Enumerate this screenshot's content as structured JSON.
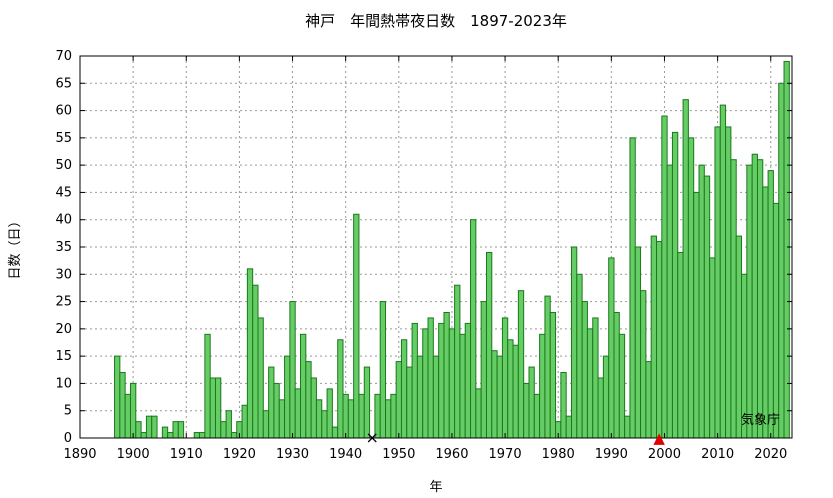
{
  "chart_data": {
    "type": "bar",
    "title": "神戸　年間熱帯夜日数　1897-2023年",
    "xlabel": "年",
    "ylabel": "日数（日）",
    "source": "気象庁",
    "xlim": [
      1890,
      2024
    ],
    "ylim": [
      0,
      70
    ],
    "xticks": [
      1890,
      1900,
      1910,
      1920,
      1930,
      1940,
      1950,
      1960,
      1970,
      1980,
      1990,
      2000,
      2010,
      2020
    ],
    "yticks": [
      0,
      5,
      10,
      15,
      20,
      25,
      30,
      35,
      40,
      45,
      50,
      55,
      60,
      65,
      70
    ],
    "grid": true,
    "start_year": 1897,
    "values": [
      15,
      12,
      8,
      10,
      3,
      1,
      4,
      4,
      0,
      2,
      1,
      3,
      3,
      0,
      0,
      1,
      1,
      19,
      11,
      11,
      3,
      5,
      1,
      3,
      6,
      31,
      28,
      22,
      5,
      13,
      10,
      7,
      15,
      25,
      9,
      19,
      14,
      11,
      7,
      5,
      9,
      2,
      18,
      8,
      7,
      41,
      8,
      13,
      0,
      8,
      25,
      7,
      8,
      14,
      18,
      13,
      21,
      15,
      20,
      22,
      15,
      21,
      23,
      20,
      28,
      19,
      21,
      40,
      9,
      25,
      34,
      16,
      15,
      22,
      18,
      17,
      27,
      10,
      13,
      8,
      19,
      26,
      23,
      3,
      12,
      4,
      35,
      30,
      25,
      20,
      22,
      11,
      15,
      33,
      23,
      19,
      4,
      55,
      35,
      27,
      14,
      37,
      36,
      59,
      50,
      56,
      34,
      62,
      55,
      45,
      50,
      48,
      33,
      57,
      61,
      57,
      51,
      37,
      30,
      50,
      52,
      51,
      46,
      49,
      43,
      65,
      69
    ],
    "markers": [
      {
        "year": 1945,
        "symbol": "×",
        "color": "#000000"
      },
      {
        "year": 1999,
        "symbol": "▲",
        "color": "#e00000"
      }
    ],
    "bar_color": "#66cc66",
    "bar_edge_color": "#1a7a1a"
  }
}
